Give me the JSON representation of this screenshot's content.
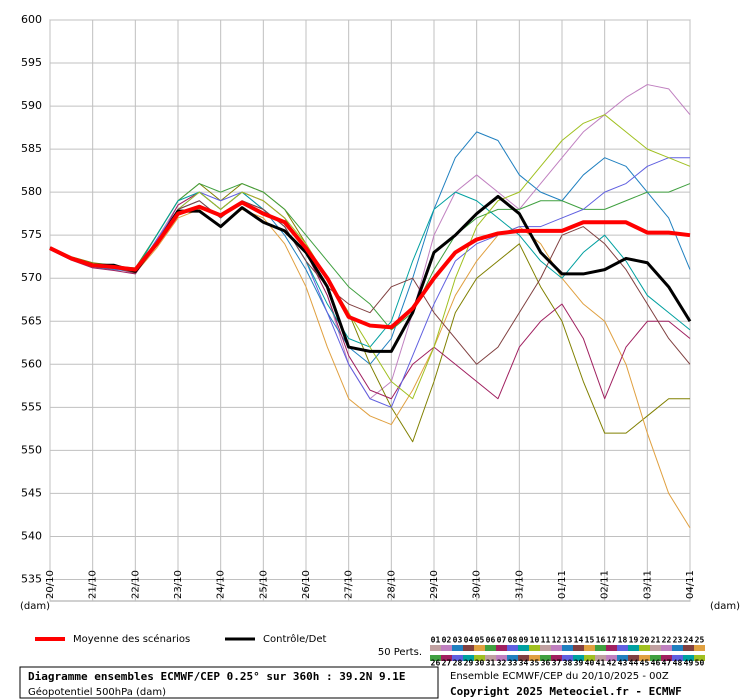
{
  "chart_data": {
    "type": "line",
    "x_unit_label": "(dam)",
    "x": [
      0,
      12,
      24,
      36,
      48,
      60,
      72,
      84,
      96,
      108,
      120,
      132,
      144,
      156,
      168,
      180,
      192,
      204,
      216,
      228,
      240,
      252,
      264,
      276,
      288,
      300,
      312,
      324,
      336,
      348,
      360
    ],
    "xlim": [
      0,
      360
    ],
    "xticks": [
      {
        "value": 0,
        "label": "20/10"
      },
      {
        "value": 24,
        "label": "21/10"
      },
      {
        "value": 48,
        "label": "22/10"
      },
      {
        "value": 72,
        "label": "23/10"
      },
      {
        "value": 96,
        "label": "24/10"
      },
      {
        "value": 120,
        "label": "25/10"
      },
      {
        "value": 144,
        "label": "26/10"
      },
      {
        "value": 168,
        "label": "27/10"
      },
      {
        "value": 192,
        "label": "28/10"
      },
      {
        "value": 216,
        "label": "29/10"
      },
      {
        "value": 240,
        "label": "30/10"
      },
      {
        "value": 264,
        "label": "31/10"
      },
      {
        "value": 288,
        "label": "01/11"
      },
      {
        "value": 312,
        "label": "02/11"
      },
      {
        "value": 336,
        "label": "03/11"
      },
      {
        "value": 360,
        "label": "04/11"
      }
    ],
    "ylim": [
      532.5,
      600
    ],
    "yticks": [
      535,
      540,
      545,
      550,
      555,
      560,
      565,
      570,
      575,
      580,
      585,
      590,
      595,
      600
    ],
    "grid": true,
    "series": [
      {
        "color": "#c080c0",
        "values": [
          573.5,
          572.4,
          571.6,
          571.2,
          570.5,
          574.5,
          578.5,
          580,
          578,
          580,
          579,
          577,
          573,
          568,
          560,
          556,
          558,
          566,
          575,
          580,
          582,
          580,
          578,
          581,
          584,
          587,
          589,
          591,
          592.5,
          592,
          589
        ]
      },
      {
        "color": "#2080c0",
        "values": [
          573.4,
          572.2,
          571.3,
          571.0,
          570.8,
          574,
          578,
          579,
          577,
          579,
          578,
          575,
          571,
          566,
          562,
          560,
          563,
          570,
          578,
          584,
          587,
          586,
          582,
          580,
          579,
          582,
          584,
          583,
          580,
          577,
          571
        ]
      },
      {
        "color": "#808000",
        "values": [
          573.6,
          572.5,
          571.8,
          571.5,
          571,
          575,
          579,
          581,
          579,
          581,
          580,
          578,
          574,
          570,
          566,
          560,
          555,
          551,
          558,
          566,
          570,
          572,
          574,
          569,
          565,
          558,
          552,
          552,
          554,
          556,
          556
        ]
      },
      {
        "color": "#e0a040",
        "values": [
          573.5,
          572.3,
          571.5,
          571.3,
          570.6,
          573.5,
          577,
          578,
          576,
          578,
          577,
          574,
          569,
          562,
          556,
          554,
          553,
          557,
          562,
          568,
          572,
          575,
          576,
          574,
          570,
          567,
          565,
          560,
          552,
          545,
          541
        ]
      },
      {
        "color": "#40a040",
        "values": [
          573.5,
          572.4,
          571.7,
          571.4,
          571.2,
          575,
          579,
          581,
          580,
          581,
          580,
          578,
          575,
          572,
          569,
          567,
          564,
          566,
          571,
          575,
          577,
          578,
          578,
          579,
          579,
          578,
          578,
          579,
          580,
          580,
          581
        ]
      },
      {
        "color": "#a02060",
        "values": [
          573.3,
          572.1,
          571.2,
          570.9,
          570.5,
          574,
          578.5,
          580,
          578,
          580,
          579,
          577,
          573,
          568,
          561,
          557,
          556,
          560,
          562,
          560,
          558,
          556,
          562,
          565,
          567,
          563,
          556,
          562,
          565,
          565,
          563
        ]
      },
      {
        "color": "#6060e0",
        "values": [
          573.5,
          572.3,
          571.4,
          571.1,
          570.7,
          574.5,
          578,
          580,
          579,
          580,
          578,
          576,
          572,
          566,
          560,
          556,
          555,
          561,
          567,
          572,
          574,
          575,
          576,
          576,
          577,
          578,
          580,
          581,
          583,
          584,
          584
        ]
      },
      {
        "color": "#00a0a0",
        "values": [
          573.4,
          572.3,
          571.6,
          571.3,
          570.9,
          575,
          579,
          580,
          578,
          580,
          578,
          576,
          572,
          567,
          563,
          562,
          565,
          572,
          578,
          580,
          579,
          577,
          575,
          572,
          570,
          573,
          575,
          572,
          568,
          566,
          564
        ]
      },
      {
        "color": "#a0c020",
        "values": [
          573.5,
          572.4,
          571.5,
          571.2,
          570.8,
          574,
          578,
          580,
          578,
          580,
          579,
          577,
          574,
          570,
          566,
          562,
          558,
          556,
          562,
          570,
          576,
          579,
          580,
          583,
          586,
          588,
          589,
          587,
          585,
          584,
          583
        ]
      },
      {
        "color": "#804040",
        "values": [
          573.6,
          572.3,
          571.5,
          571.2,
          570.6,
          574,
          578,
          579,
          577,
          579,
          578,
          576,
          572,
          569,
          567,
          566,
          569,
          570,
          566,
          563,
          560,
          562,
          566,
          570,
          575,
          576,
          574,
          571,
          567,
          563,
          560
        ]
      },
      {
        "name": "Contrôle/Det",
        "color": "#000000",
        "width": 3,
        "values": [
          573.5,
          572.3,
          571.5,
          571.5,
          570.8,
          574,
          577.8,
          577.8,
          576,
          578.2,
          576.5,
          575.5,
          573,
          569,
          562,
          561.5,
          561.5,
          566,
          573,
          575,
          577.5,
          579.5,
          577.5,
          573,
          570.5,
          570.5,
          571,
          572.3,
          571.8,
          569,
          565
        ]
      },
      {
        "name": "Moyenne des scénarios",
        "color": "#ff0000",
        "width": 4,
        "values": [
          573.5,
          572.3,
          571.5,
          571.3,
          571,
          574,
          577.5,
          578.3,
          577.3,
          578.8,
          577.5,
          576.5,
          573.5,
          570,
          565.5,
          564.5,
          564.3,
          566.5,
          570,
          573,
          574.5,
          575.2,
          575.5,
          575.5,
          575.5,
          576.5,
          576.5,
          576.5,
          575.3,
          575.3,
          575
        ]
      }
    ],
    "perturbations": {
      "title": "50 Perts.",
      "labels": [
        "01",
        "02",
        "03",
        "04",
        "05",
        "06",
        "07",
        "08",
        "09",
        "10",
        "11",
        "12",
        "13",
        "14",
        "15",
        "16",
        "17",
        "18",
        "19",
        "20",
        "21",
        "22",
        "23",
        "24",
        "25",
        "26",
        "27",
        "28",
        "29",
        "30",
        "31",
        "32",
        "33",
        "34",
        "35",
        "36",
        "37",
        "38",
        "39",
        "40",
        "41",
        "42",
        "43",
        "44",
        "45",
        "46",
        "47",
        "48",
        "49",
        "50"
      ],
      "colors": [
        "#c0a0a0",
        "#c080c0",
        "#2080c0",
        "#804040",
        "#e0a040",
        "#40a040",
        "#a02060",
        "#6060e0",
        "#00a0a0",
        "#a0c020"
      ]
    },
    "footer": {
      "title": "Diagramme ensembles ECMWF/CEP 0.25° sur 360h : 39.2N 9.1E",
      "subtitle": "Géopotentiel 500hPa (dam)",
      "run": "Ensemble ECMWF/CEP du 20/10/2025 - 00Z",
      "copyright": "Copyright 2025 Meteociel.fr - ECMWF"
    }
  }
}
